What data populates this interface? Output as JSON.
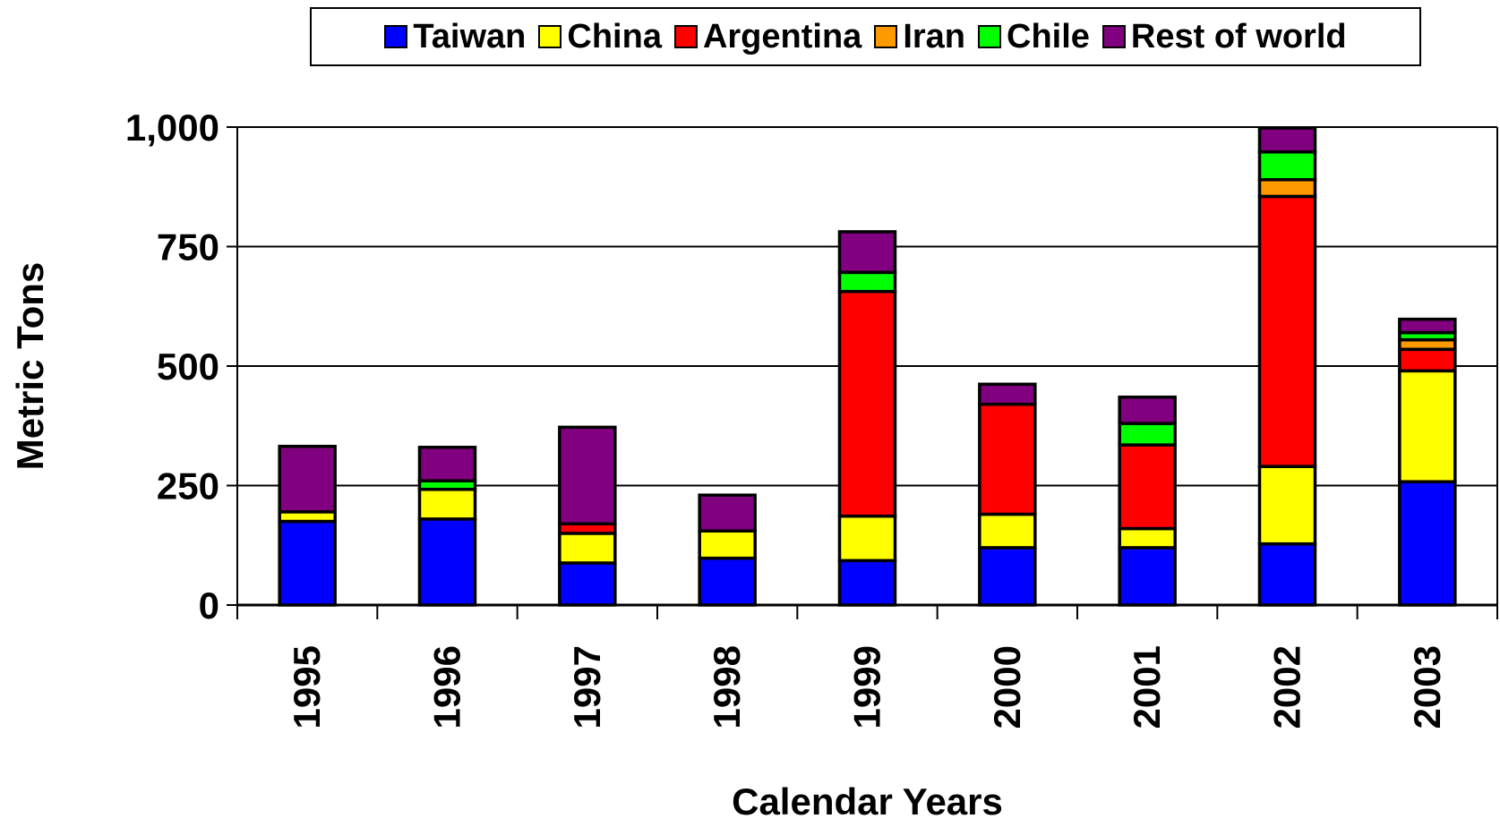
{
  "chart_data": {
    "type": "bar",
    "stacked": true,
    "xlabel": "Calendar Years",
    "ylabel": "Metric Tons",
    "ylim": [
      0,
      1000
    ],
    "yticks": [
      0,
      250,
      500,
      750,
      1000
    ],
    "ytick_labels": [
      "0",
      "250",
      "500",
      "750",
      "1,000"
    ],
    "grid": true,
    "legend_position": "top",
    "categories": [
      "1995",
      "1996",
      "1997",
      "1998",
      "1999",
      "2000",
      "2001",
      "2002",
      "2003"
    ],
    "series": [
      {
        "name": "Taiwan",
        "color": "#0000ff",
        "values": [
          175,
          180,
          88,
          98,
          93,
          120,
          120,
          128,
          258
        ]
      },
      {
        "name": "China",
        "color": "#ffff00",
        "values": [
          20,
          62,
          62,
          57,
          93,
          70,
          40,
          162,
          232
        ]
      },
      {
        "name": "Argentina",
        "color": "#ff0000",
        "values": [
          0,
          0,
          20,
          0,
          470,
          230,
          175,
          565,
          45
        ]
      },
      {
        "name": "Iran",
        "color": "#ff9900",
        "values": [
          0,
          0,
          0,
          0,
          0,
          0,
          0,
          35,
          20
        ]
      },
      {
        "name": "Chile",
        "color": "#00ff00",
        "values": [
          0,
          18,
          0,
          0,
          40,
          0,
          45,
          58,
          15
        ]
      },
      {
        "name": "Rest of world",
        "color": "#800080",
        "values": [
          137,
          70,
          202,
          75,
          85,
          42,
          55,
          50,
          28
        ]
      }
    ]
  }
}
